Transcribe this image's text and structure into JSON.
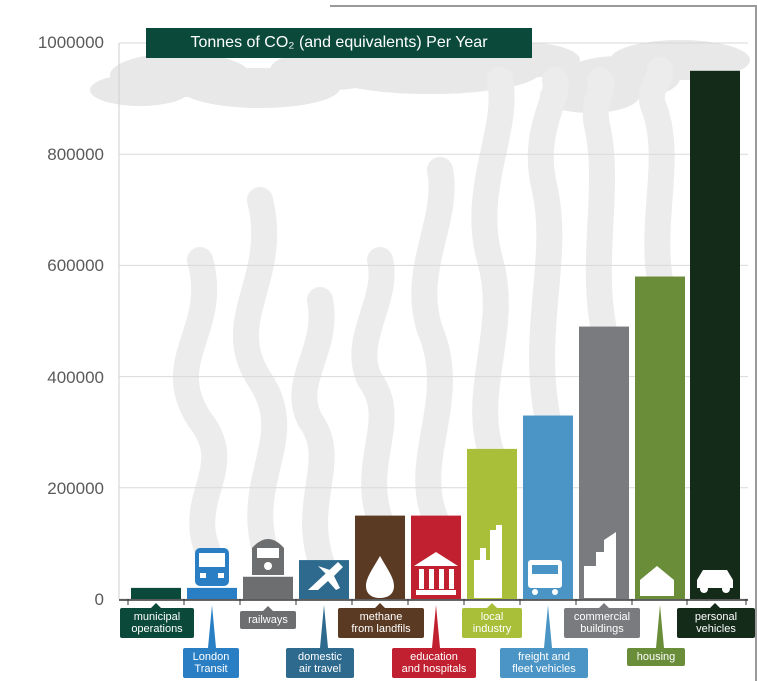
{
  "chart_data": {
    "type": "bar",
    "title": "Tonnes of CO₂ (and equivalents) Per Year",
    "ylim": [
      0,
      1000000
    ],
    "yticks": [
      "0",
      "200000",
      "400000",
      "600000",
      "800000",
      "1000000"
    ],
    "grid": true,
    "categories": [
      "municipal operations",
      "London Transit",
      "railways",
      "domestic air travel",
      "methane from landfils",
      "education and hospitals",
      "local industry",
      "freight and fleet vehicles",
      "commercial buildings",
      "housing",
      "personal vehicles"
    ],
    "values": [
      20000,
      20000,
      40000,
      70000,
      150000,
      150000,
      270000,
      330000,
      490000,
      580000,
      950000
    ],
    "colors": [
      "#0b4a3a",
      "#2a7fc4",
      "#6d6e70",
      "#2d6a8e",
      "#5b3a23",
      "#c0202f",
      "#a9bf3a",
      "#4a95c5",
      "#7a7b7e",
      "#6a8d3a",
      "#142b19"
    ],
    "icons": [
      "",
      "bus-icon",
      "train-icon",
      "airplane-icon",
      "droplet-icon",
      "institution-icon",
      "factory-icon",
      "truck-icon",
      "buildings-icon",
      "house-icon",
      "car-icon"
    ]
  },
  "labels": [
    {
      "line1": "municipal",
      "line2": "operations"
    },
    {
      "line1": "London",
      "line2": "Transit"
    },
    {
      "line1": "railways",
      "line2": ""
    },
    {
      "line1": "domestic",
      "line2": "air travel"
    },
    {
      "line1": "methane",
      "line2": "from landfils"
    },
    {
      "line1": "education",
      "line2": "and hospitals"
    },
    {
      "line1": "local",
      "line2": "industry"
    },
    {
      "line1": "freight and",
      "line2": "fleet vehicles"
    },
    {
      "line1": "commercial",
      "line2": "buildings"
    },
    {
      "line1": "housing",
      "line2": ""
    },
    {
      "line1": "personal",
      "line2": "vehicles"
    }
  ]
}
